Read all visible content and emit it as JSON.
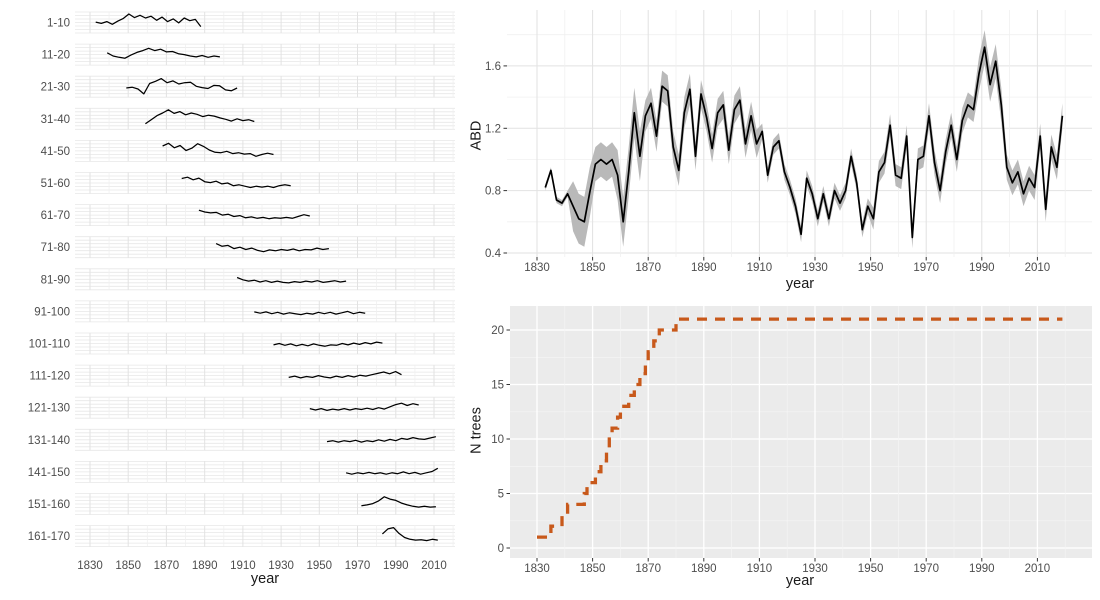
{
  "figure_background": "#FFFFFF",
  "colors": {
    "series_line": "#000000",
    "ribbon": "#B9B9B9",
    "step_line_orange": "#C8591B",
    "panel_gray": "#EBEBEB",
    "grid_major_on_white": "#E2E2E2",
    "grid_minor_on_white": "#F0F0F0",
    "grid_major_on_gray": "#FFFFFF",
    "grid_minor_on_gray": "#F5F5F5",
    "strip_gridline": "#E7E7E7",
    "axis_text": "#4D4D4D",
    "tick_mark": "#333333"
  },
  "chart_data": [
    {
      "id": "age_band_panel",
      "type": "line",
      "title": "",
      "xlabel": "year",
      "ylabel": "",
      "x_domain": [
        1824,
        2022
      ],
      "grid": true,
      "x_tick_values": [
        1830,
        1850,
        1870,
        1890,
        1910,
        1930,
        1950,
        1970,
        1990,
        2010
      ],
      "x_tick_labels": [
        "1830",
        "1850",
        "1870",
        "1890",
        "1910",
        "1930",
        "1950",
        "1970",
        "1990",
        "2010"
      ],
      "strip_labels": [
        "1-10",
        "11-20",
        "21-30",
        "31-40",
        "41-50",
        "51-60",
        "61-70",
        "71-80",
        "81-90",
        "91-100",
        "101-110",
        "111-120",
        "121-130",
        "131-140",
        "141-150",
        "151-160",
        "161-170"
      ],
      "series": [
        {
          "label": "1-10",
          "start": 1833,
          "end": 1888,
          "values": [
            0.05,
            -0.1,
            0.1,
            -0.2,
            0.15,
            0.45,
            0.95,
            0.55,
            0.8,
            0.5,
            0.7,
            0.25,
            0.6,
            0.1,
            0.4,
            -0.05,
            0.5,
            0.2,
            0.35,
            -0.45
          ]
        },
        {
          "label": "11-20",
          "start": 1839,
          "end": 1898,
          "values": [
            0.2,
            -0.15,
            -0.3,
            -0.4,
            -0.05,
            0.25,
            0.45,
            0.7,
            0.45,
            0.6,
            0.3,
            0.35,
            0.1,
            0.0,
            -0.15,
            -0.25,
            -0.1,
            -0.3,
            -0.15,
            -0.25
          ]
        },
        {
          "label": "21-30",
          "start": 1849,
          "end": 1907,
          "values": [
            -0.15,
            -0.05,
            -0.25,
            -0.8,
            0.35,
            0.6,
            0.9,
            0.45,
            0.65,
            0.3,
            0.45,
            0.5,
            0.05,
            -0.1,
            -0.2,
            0.15,
            0.1,
            -0.35,
            -0.45,
            -0.15
          ]
        },
        {
          "label": "31-40",
          "start": 1859,
          "end": 1916,
          "values": [
            -0.55,
            -0.1,
            0.35,
            0.65,
            1.0,
            0.6,
            0.8,
            0.45,
            0.65,
            0.5,
            0.25,
            0.4,
            0.3,
            0.1,
            -0.05,
            -0.25,
            0.0,
            -0.2,
            -0.1,
            -0.3
          ]
        },
        {
          "label": "41-50",
          "start": 1868,
          "end": 1926,
          "values": [
            0.55,
            0.85,
            0.35,
            0.6,
            0.05,
            0.3,
            0.8,
            0.5,
            0.1,
            -0.15,
            -0.2,
            -0.05,
            -0.3,
            -0.2,
            -0.35,
            -0.3,
            -0.6,
            -0.4,
            -0.25,
            -0.4
          ]
        },
        {
          "label": "51-60",
          "start": 1878,
          "end": 1935,
          "values": [
            0.5,
            0.65,
            0.35,
            0.55,
            0.15,
            0.05,
            0.2,
            -0.1,
            0.0,
            -0.3,
            -0.2,
            -0.35,
            -0.5,
            -0.35,
            -0.45,
            -0.35,
            -0.5,
            -0.3,
            -0.2,
            -0.3
          ]
        },
        {
          "label": "61-70",
          "start": 1887,
          "end": 1945,
          "values": [
            0.55,
            0.35,
            0.25,
            0.3,
            0.0,
            0.1,
            -0.15,
            -0.05,
            -0.3,
            -0.2,
            -0.35,
            -0.25,
            -0.4,
            -0.3,
            -0.35,
            -0.25,
            -0.35,
            -0.15,
            0.05,
            -0.1
          ]
        },
        {
          "label": "71-80",
          "start": 1896,
          "end": 1955,
          "values": [
            0.4,
            0.1,
            0.2,
            -0.15,
            0.0,
            -0.25,
            -0.1,
            -0.35,
            -0.5,
            -0.3,
            -0.4,
            -0.25,
            -0.35,
            -0.2,
            -0.4,
            -0.25,
            -0.3,
            -0.1,
            -0.25,
            -0.15
          ]
        },
        {
          "label": "81-90",
          "start": 1907,
          "end": 1964,
          "values": [
            0.2,
            -0.05,
            -0.2,
            -0.1,
            -0.3,
            -0.15,
            -0.35,
            -0.2,
            -0.35,
            -0.4,
            -0.25,
            -0.35,
            -0.2,
            -0.3,
            -0.15,
            -0.35,
            -0.25,
            -0.15,
            -0.3,
            -0.2
          ]
        },
        {
          "label": "91-100",
          "start": 1916,
          "end": 1974,
          "values": [
            -0.05,
            -0.2,
            -0.05,
            -0.25,
            -0.1,
            -0.3,
            -0.15,
            -0.25,
            -0.35,
            -0.2,
            -0.3,
            -0.1,
            -0.25,
            -0.1,
            -0.3,
            -0.15,
            0.0,
            -0.25,
            -0.1,
            -0.2
          ]
        },
        {
          "label": "101-110",
          "start": 1926,
          "end": 1983,
          "values": [
            -0.15,
            0.0,
            -0.2,
            -0.05,
            -0.25,
            -0.1,
            -0.25,
            -0.05,
            -0.2,
            -0.3,
            -0.15,
            -0.2,
            0.0,
            -0.15,
            0.05,
            -0.1,
            0.1,
            -0.05,
            0.15,
            0.05
          ]
        },
        {
          "label": "111-120",
          "start": 1934,
          "end": 1993,
          "values": [
            -0.2,
            -0.05,
            -0.25,
            -0.1,
            -0.2,
            0.0,
            -0.15,
            -0.25,
            -0.05,
            -0.2,
            0.0,
            -0.15,
            0.05,
            -0.05,
            0.1,
            0.25,
            0.4,
            0.2,
            0.45,
            0.1
          ]
        },
        {
          "label": "121-130",
          "start": 1945,
          "end": 2002,
          "values": [
            -0.1,
            -0.25,
            -0.1,
            -0.3,
            -0.15,
            -0.25,
            -0.1,
            -0.25,
            -0.1,
            -0.2,
            -0.05,
            -0.2,
            0.0,
            -0.15,
            0.1,
            0.35,
            0.5,
            0.25,
            0.45,
            0.3
          ]
        },
        {
          "label": "131-140",
          "start": 1954,
          "end": 2011,
          "values": [
            -0.2,
            -0.1,
            -0.25,
            -0.1,
            -0.2,
            -0.05,
            -0.25,
            -0.1,
            -0.2,
            0.0,
            -0.15,
            0.05,
            -0.1,
            0.15,
            0.05,
            0.25,
            0.1,
            0.05,
            0.2,
            0.35
          ]
        },
        {
          "label": "141-150",
          "start": 1964,
          "end": 2012,
          "values": [
            -0.1,
            -0.25,
            -0.1,
            -0.2,
            -0.05,
            -0.2,
            -0.1,
            -0.25,
            -0.1,
            -0.2,
            0.0,
            -0.2,
            -0.05,
            -0.25,
            -0.1,
            0.05,
            0.4
          ]
        },
        {
          "label": "151-160",
          "start": 1972,
          "end": 2011,
          "values": [
            -0.2,
            -0.1,
            0.05,
            0.35,
            0.8,
            0.55,
            0.4,
            0.1,
            -0.1,
            -0.25,
            -0.35,
            -0.25,
            -0.35,
            -0.3
          ]
        },
        {
          "label": "161-170",
          "start": 1983,
          "end": 2012,
          "values": [
            0.25,
            0.8,
            0.95,
            0.3,
            -0.15,
            -0.35,
            -0.45,
            -0.4,
            -0.5,
            -0.35,
            -0.45
          ]
        }
      ]
    },
    {
      "id": "abd_chart",
      "type": "line",
      "title": "",
      "xlabel": "year",
      "ylabel": "ABD",
      "legend": "none",
      "grid": true,
      "ylim": [
        0.32,
        1.97
      ],
      "xlim": [
        1819,
        2030
      ],
      "y_tick_values": [
        0.4,
        0.8,
        1.2,
        1.6
      ],
      "y_tick_labels": [
        "0.4",
        "0.8",
        "1.2",
        "1.6"
      ],
      "y_minor_values": [
        0.6,
        1.0,
        1.4,
        1.8
      ],
      "x_tick_values": [
        1830,
        1850,
        1870,
        1890,
        1910,
        1930,
        1950,
        1970,
        1990,
        2010
      ],
      "x_tick_labels": [
        "1830",
        "1850",
        "1870",
        "1890",
        "1910",
        "1930",
        "1950",
        "1970",
        "1990",
        "2010"
      ],
      "x_start": 1833,
      "x_step": 2,
      "values": [
        0.82,
        0.93,
        0.74,
        0.72,
        0.78,
        0.7,
        0.62,
        0.6,
        0.79,
        0.97,
        1.0,
        0.97,
        1.0,
        0.9,
        0.6,
        0.92,
        1.3,
        1.02,
        1.28,
        1.36,
        1.15,
        1.47,
        1.44,
        1.08,
        0.93,
        1.3,
        1.45,
        1.02,
        1.42,
        1.27,
        1.07,
        1.3,
        1.35,
        1.06,
        1.32,
        1.38,
        1.1,
        1.28,
        1.1,
        1.18,
        0.9,
        1.08,
        1.12,
        0.92,
        0.82,
        0.7,
        0.52,
        0.88,
        0.78,
        0.62,
        0.78,
        0.62,
        0.8,
        0.72,
        0.8,
        1.02,
        0.85,
        0.55,
        0.7,
        0.62,
        0.92,
        0.98,
        1.22,
        0.9,
        0.88,
        1.15,
        0.5,
        1.0,
        1.02,
        1.28,
        0.98,
        0.8,
        1.05,
        1.22,
        1.0,
        1.25,
        1.35,
        1.32,
        1.55,
        1.72,
        1.48,
        1.63,
        1.35,
        0.95,
        0.85,
        0.92,
        0.78,
        0.88,
        0.82,
        1.15,
        0.68,
        1.08,
        0.95,
        1.28
      ],
      "band_segments": [
        [
          1833,
          1842,
          0.02
        ],
        [
          1843,
          1850,
          0.16
        ],
        [
          1851,
          1857,
          0.11
        ],
        [
          1858,
          1868,
          0.16
        ],
        [
          1869,
          1886,
          0.1
        ],
        [
          1887,
          1910,
          0.09
        ],
        [
          1911,
          1920,
          0.05
        ],
        [
          1921,
          1950,
          0.05
        ],
        [
          1951,
          1970,
          0.07
        ],
        [
          1971,
          1987,
          0.08
        ],
        [
          1988,
          1998,
          0.11
        ],
        [
          1999,
          2019,
          0.08
        ]
      ],
      "ribbon_color": "#B9B9B9",
      "line_color": "#000000"
    },
    {
      "id": "n_trees_chart",
      "type": "line",
      "style": "dashed-step",
      "title": "",
      "xlabel": "year",
      "ylabel": "N trees",
      "grid": true,
      "panel_bg": "#EBEBEB",
      "ylim": [
        -1,
        22
      ],
      "y_tick_values": [
        0,
        5,
        10,
        15,
        20
      ],
      "y_tick_labels": [
        "0",
        "5",
        "10",
        "15",
        "20"
      ],
      "y_minor_values": [
        2.5,
        7.5,
        12.5,
        17.5
      ],
      "x_tick_values": [
        1830,
        1850,
        1870,
        1890,
        1910,
        1930,
        1950,
        1970,
        1990,
        2010
      ],
      "x_tick_labels": [
        "1830",
        "1850",
        "1870",
        "1890",
        "1910",
        "1930",
        "1950",
        "1970",
        "1990",
        "2010"
      ],
      "steps": [
        [
          1830,
          1
        ],
        [
          1835,
          2
        ],
        [
          1839,
          3
        ],
        [
          1841,
          4
        ],
        [
          1847,
          5
        ],
        [
          1848,
          6
        ],
        [
          1851,
          7
        ],
        [
          1853,
          8
        ],
        [
          1855,
          9
        ],
        [
          1856,
          10
        ],
        [
          1857,
          11
        ],
        [
          1859,
          12
        ],
        [
          1860,
          13
        ],
        [
          1863,
          14
        ],
        [
          1865,
          15
        ],
        [
          1867,
          16
        ],
        [
          1869,
          17
        ],
        [
          1870,
          18
        ],
        [
          1872,
          19
        ],
        [
          1874,
          20
        ],
        [
          1880,
          21
        ],
        [
          2019,
          21
        ]
      ],
      "line_color": "#C8591B",
      "dashed": true
    }
  ]
}
